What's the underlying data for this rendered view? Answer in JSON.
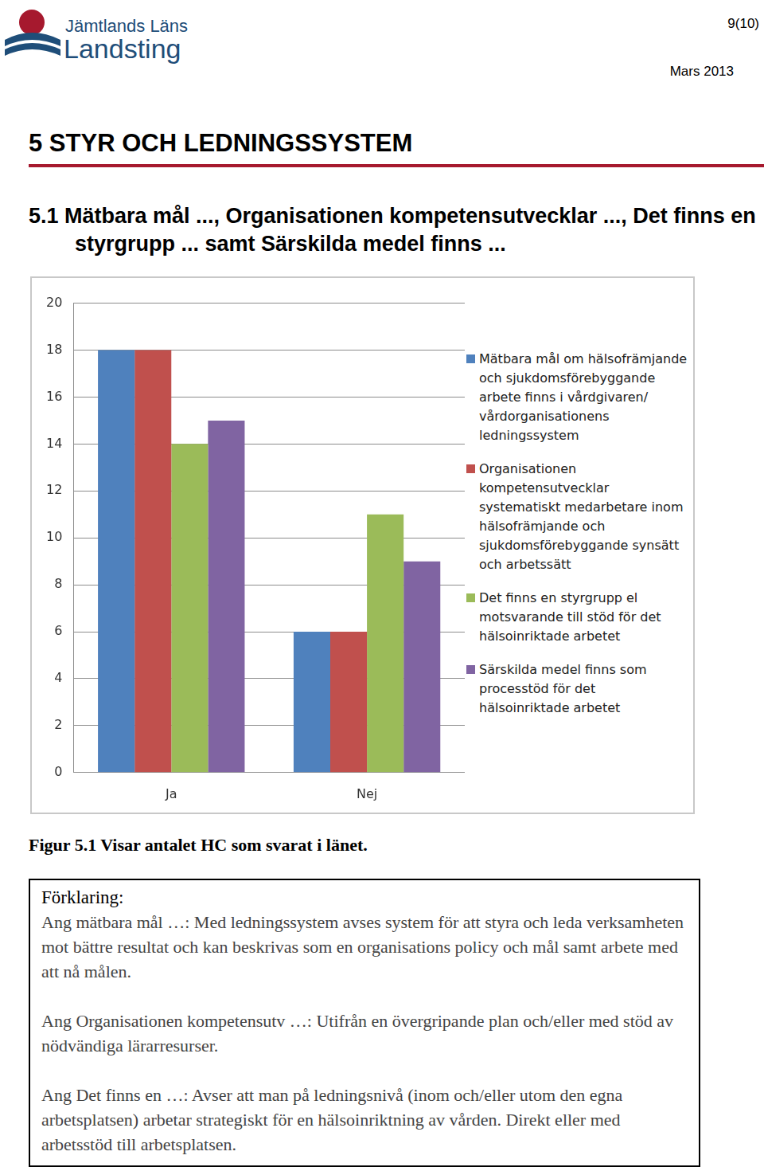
{
  "header": {
    "logo_line1": "Jämtlands Läns",
    "logo_line2": "Landsting",
    "page": "9(10)",
    "date": "Mars 2013"
  },
  "heading": "5  STYR OCH LEDNINGSSYSTEM",
  "subheading": "5.1  Mätbara mål ..., Organisationen kompetensutvecklar ..., Det finns en styrgrupp ... samt Särskilda medel finns ...",
  "chart_data": {
    "type": "bar",
    "categories": [
      "Ja",
      "Nej"
    ],
    "series": [
      {
        "name": "Mätbara mål om hälsofrämjande och sjukdomsförebyggande arbete finns i vårdgivaren/ vårdorganisationens ledningssystem",
        "color": "#4f81bd",
        "values": [
          18,
          6
        ]
      },
      {
        "name": "Organisationen kompetensutvecklar systematiskt medarbetare inom hälsofrämjande och sjukdomsförebyggande synsätt och arbetssätt",
        "color": "#c0504d",
        "values": [
          18,
          6
        ]
      },
      {
        "name": "Det finns en styrgrupp el motsvarande till stöd för det hälsoinriktade arbetet",
        "color": "#9bbb59",
        "values": [
          14,
          11
        ]
      },
      {
        "name": "Särskilda medel finns som processtöd för det hälsoinriktade arbetet",
        "color": "#8064a2",
        "values": [
          15,
          9
        ]
      }
    ],
    "ylim": [
      0,
      20
    ],
    "yticks": [
      0,
      2,
      4,
      6,
      8,
      10,
      12,
      14,
      16,
      18,
      20
    ],
    "grid": true,
    "legend": "right"
  },
  "caption": "Figur 5.1 Visar antalet HC som svarat i länet.",
  "explanation": {
    "title": "Förklaring:",
    "paragraphs": [
      "Ang mätbara mål …: Med ledningssystem avses system för att styra och leda verksamheten mot bättre resultat och kan beskrivas som en organisations policy och mål samt arbete med att nå målen.",
      "Ang Organisationen kompetensutv …: Utifrån en övergripande plan och/eller med stöd av nödvändiga lärarresurser.",
      "Ang Det finns en …: Avser att man på ledningsnivå (inom och/eller  utom den egna arbetsplatsen) arbetar strategiskt för en hälsoinriktning av vården. Direkt eller med arbetsstöd till arbetsplatsen."
    ]
  }
}
